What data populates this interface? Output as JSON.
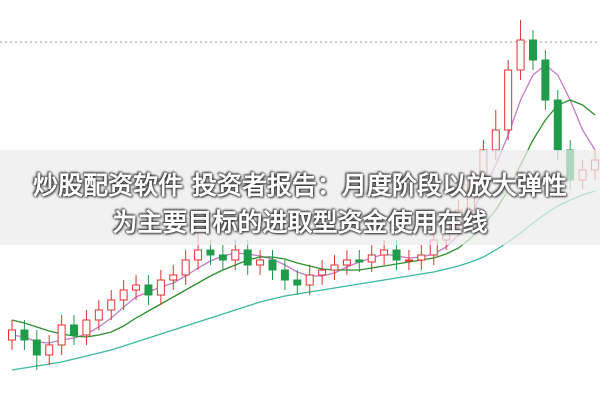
{
  "chart_data": {
    "type": "candlestick",
    "title": [
      "炒股配资软件 投资者报告：月度阶段以放大弹性",
      "为主要目标的进取型资金使用在线"
    ],
    "ylim": [
      0,
      400
    ],
    "up_color": "#e0312f",
    "down_color": "#1f9c4a",
    "open": [
      60,
      70,
      60,
      45,
      55,
      75,
      65,
      80,
      90,
      100,
      110,
      115,
      105,
      120,
      125,
      140,
      150,
      145,
      140,
      150,
      135,
      140,
      130,
      120,
      115,
      125,
      130,
      135,
      140,
      138,
      145,
      150,
      140,
      140,
      145,
      160,
      175,
      190,
      220,
      250,
      270,
      330,
      360,
      340,
      300,
      250,
      220,
      230
    ],
    "high": [
      80,
      80,
      70,
      65,
      85,
      85,
      90,
      100,
      110,
      120,
      125,
      125,
      130,
      135,
      150,
      170,
      160,
      155,
      160,
      160,
      150,
      150,
      140,
      130,
      135,
      140,
      145,
      150,
      150,
      155,
      160,
      160,
      150,
      155,
      170,
      185,
      200,
      230,
      260,
      290,
      340,
      380,
      370,
      350,
      310,
      260,
      240,
      250
    ],
    "low": [
      50,
      50,
      30,
      35,
      45,
      55,
      55,
      70,
      80,
      90,
      100,
      95,
      95,
      110,
      115,
      130,
      135,
      130,
      130,
      125,
      125,
      120,
      110,
      105,
      105,
      115,
      120,
      125,
      128,
      128,
      135,
      130,
      130,
      130,
      135,
      150,
      165,
      180,
      210,
      240,
      260,
      320,
      330,
      290,
      240,
      210,
      210,
      220
    ],
    "close": [
      70,
      60,
      45,
      55,
      75,
      65,
      80,
      90,
      100,
      110,
      115,
      105,
      120,
      125,
      140,
      150,
      145,
      140,
      150,
      135,
      140,
      130,
      120,
      115,
      125,
      130,
      135,
      140,
      138,
      145,
      150,
      140,
      140,
      145,
      160,
      175,
      190,
      220,
      250,
      270,
      330,
      360,
      340,
      300,
      250,
      220,
      230,
      240
    ],
    "series": [
      {
        "color": "#c57ac9",
        "values": [
          65,
          63,
          58,
          57,
          60,
          62,
          66,
          73,
          82,
          93,
          103,
          108,
          113,
          117,
          124,
          132,
          139,
          144,
          147,
          146,
          144,
          141,
          135,
          128,
          124,
          124,
          127,
          133,
          138,
          142,
          146,
          144,
          142,
          143,
          146,
          153,
          165,
          185,
          210,
          235,
          265,
          300,
          325,
          335,
          325,
          300,
          270,
          250
        ]
      },
      {
        "color": "#2f8f2f",
        "values": [
          80,
          77,
          73,
          69,
          66,
          64,
          63,
          65,
          68,
          74,
          82,
          89,
          96,
          103,
          110,
          117,
          124,
          130,
          135,
          140,
          143,
          143,
          141,
          137,
          134,
          131,
          130,
          130,
          130,
          132,
          134,
          136,
          138,
          140,
          142,
          146,
          152,
          162,
          175,
          190,
          210,
          235,
          260,
          280,
          295,
          300,
          295,
          285
        ]
      },
      {
        "color": "#3cb8a0",
        "values": [
          30,
          32,
          34,
          36,
          38,
          41,
          44,
          47,
          50,
          54,
          58,
          62,
          66,
          70,
          74,
          78,
          82,
          86,
          90,
          94,
          98,
          101,
          104,
          106,
          108,
          110,
          112,
          114,
          116,
          118,
          120,
          122,
          124,
          126,
          128,
          131,
          134,
          138,
          143,
          150,
          158,
          167,
          177,
          186,
          194,
          200,
          205,
          209
        ]
      }
    ]
  }
}
